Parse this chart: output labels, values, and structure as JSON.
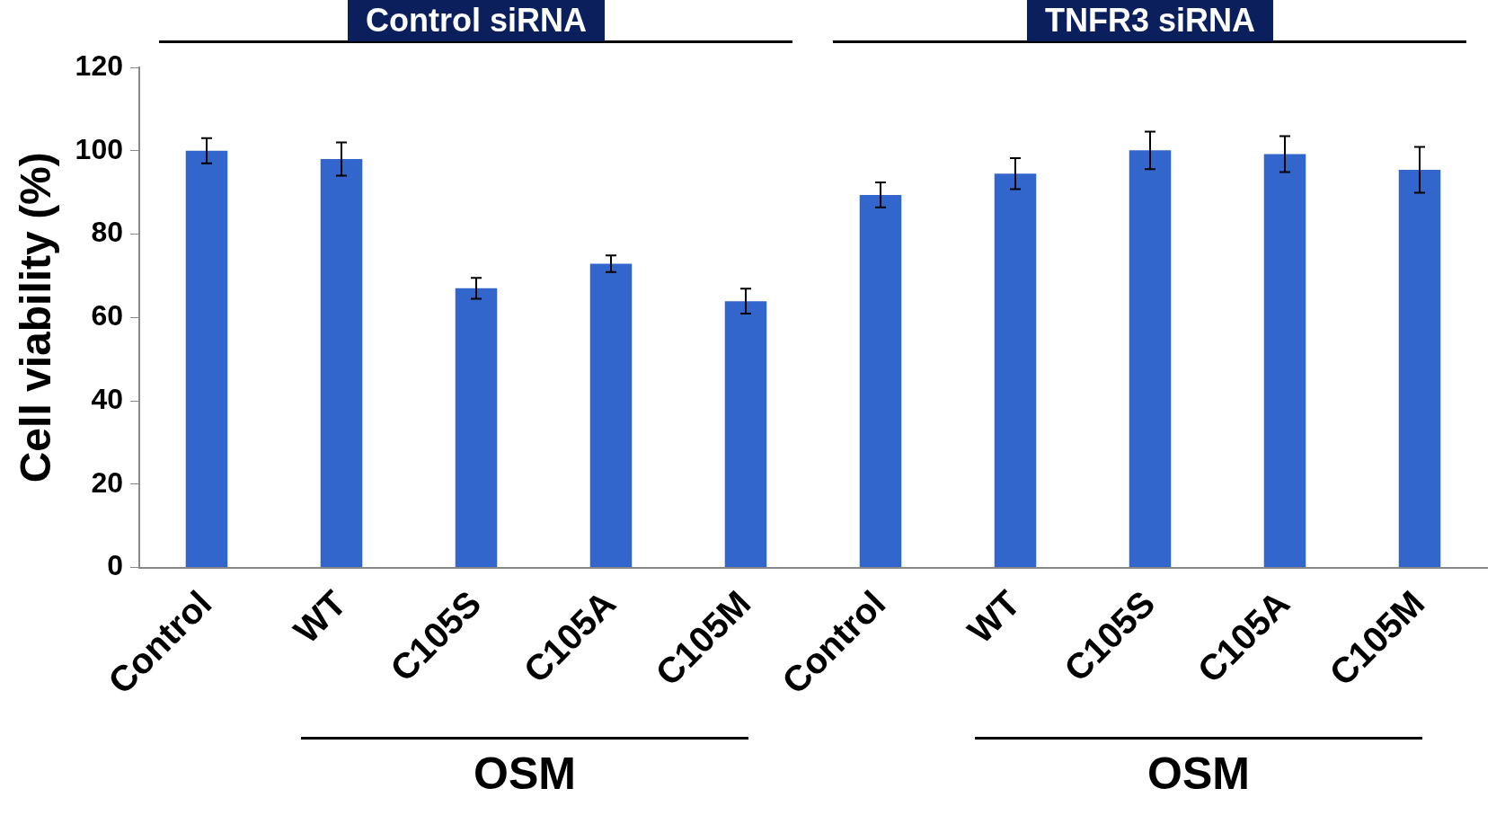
{
  "chart_data": {
    "type": "bar",
    "ylabel": "Cell viability (%)",
    "categories": [
      "Control",
      "WT",
      "C105S",
      "C105A",
      "C105M",
      "Control",
      "WT",
      "C105S",
      "C105A",
      "C105M"
    ],
    "values": [
      100,
      98,
      67,
      72.9,
      63.9,
      89.4,
      94.5,
      100.1,
      99.2,
      95.4
    ],
    "errors": [
      3,
      4,
      2.5,
      2,
      3,
      3,
      3.7,
      4.5,
      4.3,
      5.5
    ],
    "color": "#3366cc",
    "ylim": [
      0,
      120
    ],
    "yticks": [
      0,
      20,
      40,
      60,
      80,
      100,
      120
    ],
    "grid": false,
    "legend": false,
    "annotations": [
      "Control siRNA",
      "TNFR3 siRNA",
      "OSM",
      "OSM"
    ]
  }
}
